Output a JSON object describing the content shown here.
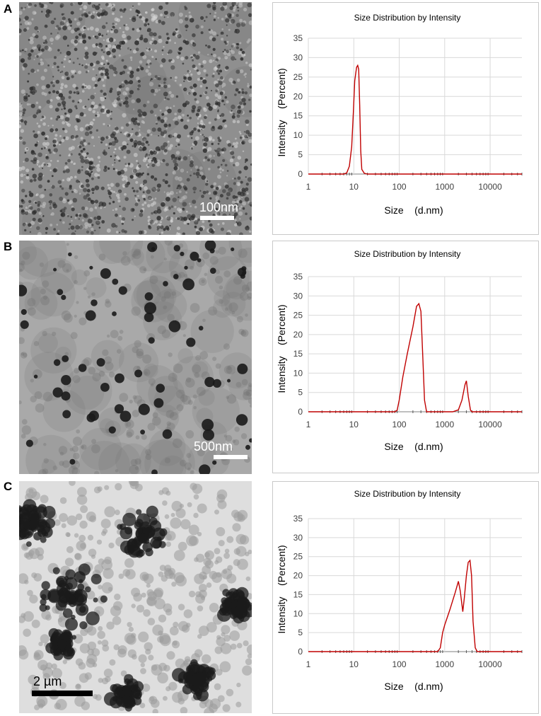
{
  "panels": [
    {
      "label": "A",
      "scale_bar": "100nm",
      "tem_style": "small",
      "chart_data": {
        "type": "line",
        "title": "Size Distribution by Intensity",
        "xlabel": "Size    (d.nm)",
        "ylabel": "Intensity    (Percent)",
        "xscale": "log",
        "xlim": [
          1,
          50000
        ],
        "ylim": [
          0,
          35
        ],
        "x_ticks": [
          1,
          10,
          100,
          1000,
          10000
        ],
        "x_tick_labels": [
          "1",
          "10",
          "100",
          "1000",
          "10000"
        ],
        "y_ticks": [
          0,
          5,
          10,
          15,
          20,
          25,
          30,
          35
        ],
        "grid": true,
        "series_color": "#c00000",
        "points": [
          [
            1,
            0
          ],
          [
            6,
            0
          ],
          [
            7,
            0.3
          ],
          [
            8,
            2
          ],
          [
            9,
            7
          ],
          [
            9.8,
            16
          ],
          [
            10.5,
            24
          ],
          [
            11.5,
            27.5
          ],
          [
            12.2,
            28
          ],
          [
            12.8,
            27
          ],
          [
            13.5,
            18
          ],
          [
            14.2,
            6
          ],
          [
            15,
            1.2
          ],
          [
            17,
            0.2
          ],
          [
            20,
            0
          ],
          [
            50000,
            0
          ]
        ]
      }
    },
    {
      "label": "B",
      "scale_bar": "500nm",
      "tem_style": "medium",
      "chart_data": {
        "type": "line",
        "title": "Size Distribution by Intensity",
        "xlabel": "Size    (d.nm)",
        "ylabel": "Intensity    (Percent)",
        "xscale": "log",
        "xlim": [
          1,
          50000
        ],
        "ylim": [
          0,
          35
        ],
        "x_ticks": [
          1,
          10,
          100,
          1000,
          10000
        ],
        "x_tick_labels": [
          "1",
          "10",
          "100",
          "1000",
          "10000"
        ],
        "y_ticks": [
          0,
          5,
          10,
          15,
          20,
          25,
          30,
          35
        ],
        "grid": true,
        "series_color": "#c00000",
        "points": [
          [
            1,
            0
          ],
          [
            80,
            0
          ],
          [
            90,
            0.4
          ],
          [
            100,
            3
          ],
          [
            120,
            9
          ],
          [
            150,
            15
          ],
          [
            200,
            22
          ],
          [
            240,
            27.3
          ],
          [
            270,
            28
          ],
          [
            300,
            26
          ],
          [
            330,
            14
          ],
          [
            360,
            3
          ],
          [
            400,
            0
          ],
          [
            1500,
            0
          ],
          [
            2000,
            0.5
          ],
          [
            2400,
            3
          ],
          [
            2800,
            7
          ],
          [
            3000,
            8
          ],
          [
            3300,
            4
          ],
          [
            3700,
            0.4
          ],
          [
            4000,
            0
          ],
          [
            50000,
            0
          ]
        ]
      }
    },
    {
      "label": "C",
      "scale_bar": "2 µm",
      "tem_style": "large",
      "chart_data": {
        "type": "line",
        "title": "Size Distribution by Intensity",
        "xlabel": "Size    (d.nm)",
        "ylabel": "Intensity    (Percent)",
        "xscale": "log",
        "xlim": [
          1,
          50000
        ],
        "ylim": [
          0,
          35
        ],
        "x_ticks": [
          1,
          10,
          100,
          1000,
          10000
        ],
        "x_tick_labels": [
          "1",
          "10",
          "100",
          "1000",
          "10000"
        ],
        "y_ticks": [
          0,
          5,
          10,
          15,
          20,
          25,
          30,
          35
        ],
        "grid": true,
        "series_color": "#c00000",
        "points": [
          [
            1,
            0
          ],
          [
            700,
            0
          ],
          [
            800,
            1
          ],
          [
            900,
            5
          ],
          [
            1000,
            7
          ],
          [
            1300,
            11
          ],
          [
            1700,
            15.5
          ],
          [
            2000,
            18.5
          ],
          [
            2200,
            16
          ],
          [
            2500,
            10.5
          ],
          [
            2700,
            14
          ],
          [
            3000,
            20
          ],
          [
            3300,
            23.5
          ],
          [
            3600,
            24
          ],
          [
            3900,
            20
          ],
          [
            4200,
            8
          ],
          [
            4700,
            1
          ],
          [
            5200,
            0
          ],
          [
            50000,
            0
          ]
        ]
      }
    }
  ]
}
